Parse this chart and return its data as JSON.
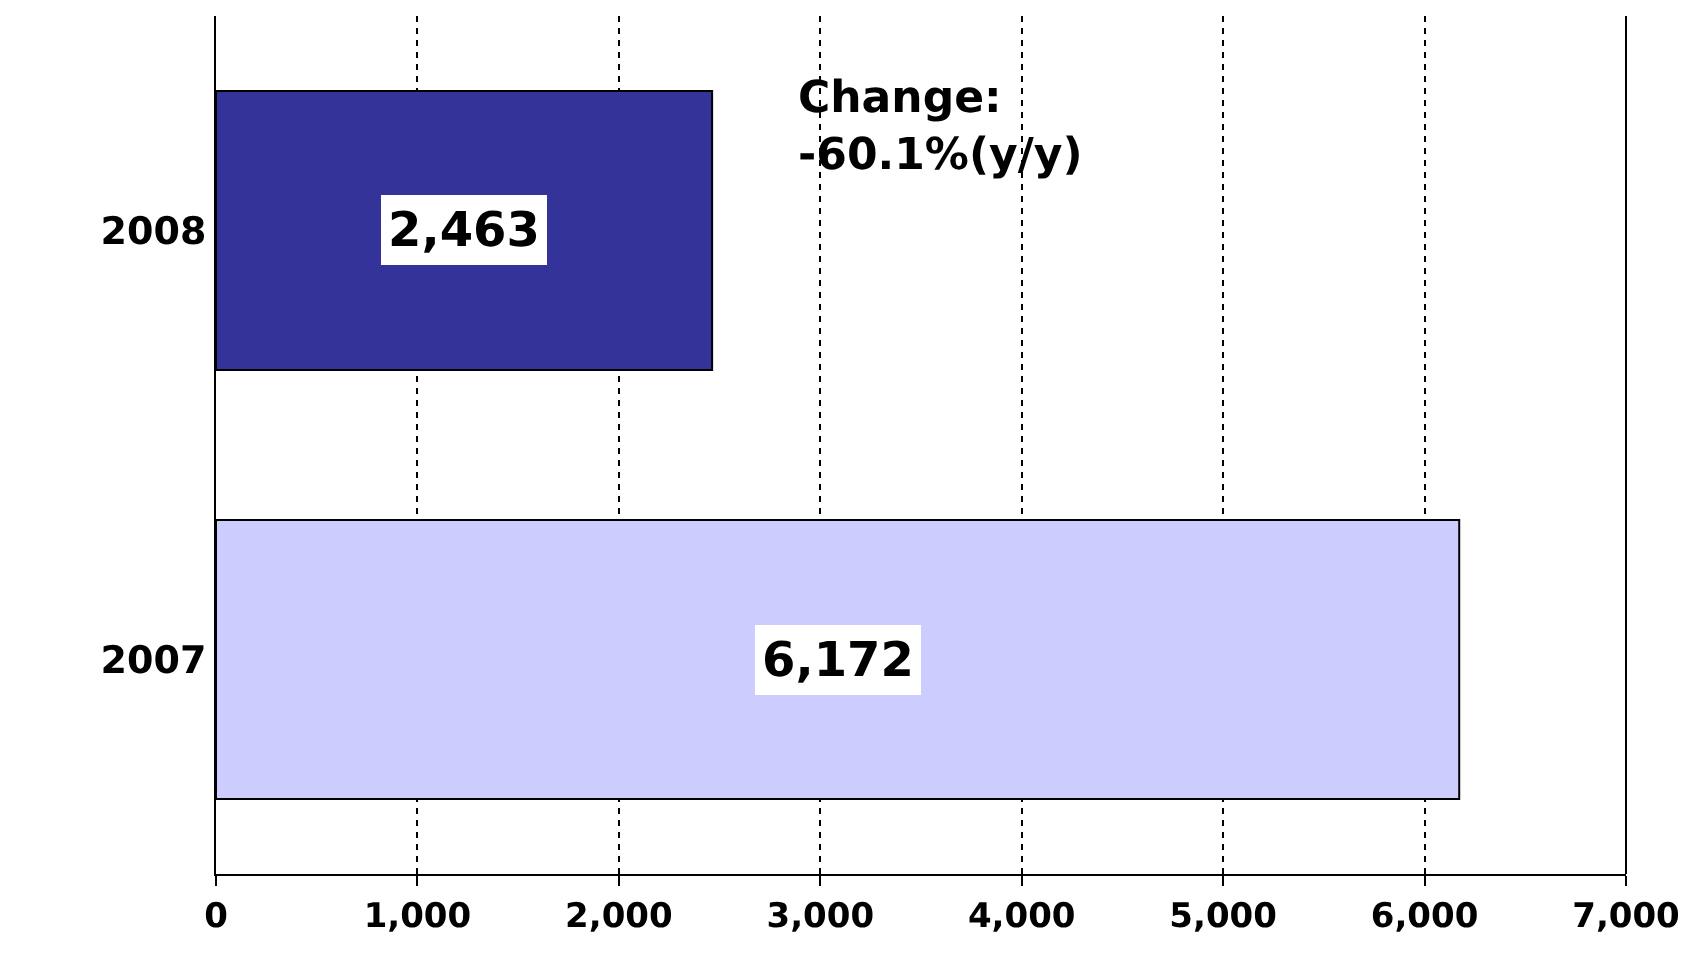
{
  "chart_data": {
    "type": "bar",
    "orientation": "horizontal",
    "categories": [
      "2008",
      "2007"
    ],
    "values": [
      2463,
      6172
    ],
    "colors": [
      "#333399",
      "#ccccff"
    ],
    "value_labels": [
      "2,463",
      "6,172"
    ],
    "annotations": [
      "Change:\n-60.1%(y/y)"
    ],
    "xlim": [
      0,
      7000
    ],
    "xticks": [
      0,
      {
        "value": 1000,
        "label": "1,000"
      },
      {
        "value": 2000,
        "label": "2,000"
      },
      {
        "value": 3000,
        "label": "3,000"
      },
      {
        "value": 4000,
        "label": "4,000"
      },
      {
        "value": 5000,
        "label": "5,000"
      },
      {
        "value": 6000,
        "label": "6,000"
      },
      {
        "value": 7000,
        "label": "7,000"
      }
    ],
    "grid": "x"
  }
}
